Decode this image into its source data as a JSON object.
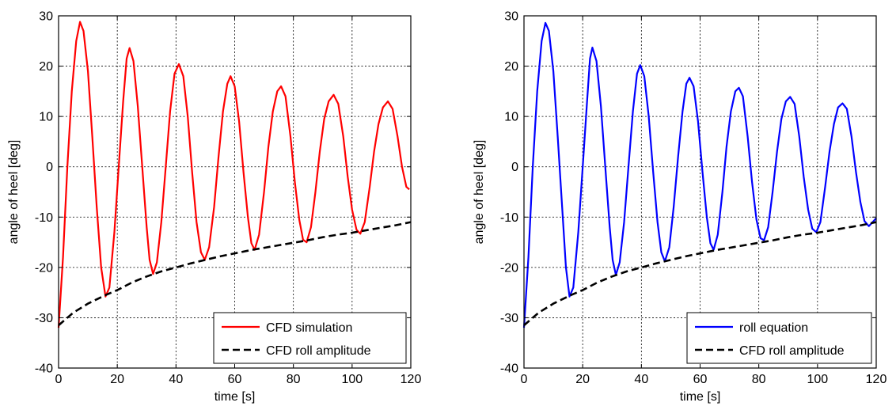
{
  "chart_data": [
    {
      "type": "line",
      "xlabel": "time [s]",
      "ylabel": "angle of heel [deg]",
      "xlim": [
        0,
        120
      ],
      "ylim": [
        -40,
        30
      ],
      "xticks": [
        0,
        20,
        40,
        60,
        80,
        100,
        120
      ],
      "yticks": [
        -40,
        -30,
        -20,
        -10,
        0,
        10,
        20,
        30
      ],
      "grid": true,
      "legend_position": "bottom-right",
      "series": [
        {
          "name": "CFD simulation",
          "color": "#ff0000",
          "style": "solid",
          "points": [
            [
              0,
              -32
            ],
            [
              1.5,
              -18
            ],
            [
              3,
              0
            ],
            [
              4.5,
              15
            ],
            [
              6,
              25
            ],
            [
              7.3,
              28.8
            ],
            [
              8.5,
              27
            ],
            [
              10,
              19
            ],
            [
              11.5,
              6
            ],
            [
              13,
              -8
            ],
            [
              14.5,
              -20
            ],
            [
              16,
              -25.8
            ],
            [
              17.3,
              -24
            ],
            [
              19,
              -13
            ],
            [
              20.5,
              0
            ],
            [
              22,
              13
            ],
            [
              23.2,
              21.5
            ],
            [
              24.2,
              23.6
            ],
            [
              25.5,
              21
            ],
            [
              27,
              12
            ],
            [
              28.5,
              0
            ],
            [
              30,
              -12
            ],
            [
              31,
              -18.5
            ],
            [
              32.2,
              -21.3
            ],
            [
              33.5,
              -19
            ],
            [
              35,
              -11
            ],
            [
              36.5,
              0
            ],
            [
              38,
              11
            ],
            [
              39.5,
              18.5
            ],
            [
              41,
              20.4
            ],
            [
              42.5,
              18
            ],
            [
              44,
              10
            ],
            [
              45.5,
              -1
            ],
            [
              47,
              -11
            ],
            [
              48.5,
              -17
            ],
            [
              49.8,
              -18.5
            ],
            [
              51.3,
              -16
            ],
            [
              53,
              -8
            ],
            [
              54.5,
              2
            ],
            [
              56,
              11
            ],
            [
              57.5,
              16.5
            ],
            [
              58.6,
              18
            ],
            [
              60,
              16
            ],
            [
              61.5,
              9
            ],
            [
              63,
              -1
            ],
            [
              64.5,
              -10
            ],
            [
              65.7,
              -15.2
            ],
            [
              66.8,
              -16.5
            ],
            [
              68.3,
              -13.5
            ],
            [
              70,
              -5
            ],
            [
              71.5,
              4
            ],
            [
              73,
              11
            ],
            [
              74.5,
              15
            ],
            [
              75.8,
              16
            ],
            [
              77.3,
              14
            ],
            [
              79,
              6
            ],
            [
              80.5,
              -3
            ],
            [
              82,
              -10.5
            ],
            [
              83.3,
              -14.5
            ],
            [
              84.5,
              -15
            ],
            [
              86,
              -12
            ],
            [
              87.5,
              -5
            ],
            [
              89,
              3
            ],
            [
              90.5,
              9.5
            ],
            [
              92,
              13
            ],
            [
              93.7,
              14.3
            ],
            [
              95.3,
              12.5
            ],
            [
              97,
              6
            ],
            [
              98.5,
              -2
            ],
            [
              100,
              -8.5
            ],
            [
              101.5,
              -12.5
            ],
            [
              102.8,
              -13.3
            ],
            [
              104.3,
              -11
            ],
            [
              106,
              -4
            ],
            [
              107.5,
              3
            ],
            [
              109,
              8.5
            ],
            [
              110.5,
              11.8
            ],
            [
              112.2,
              13
            ],
            [
              113.8,
              11.5
            ],
            [
              115.5,
              6
            ],
            [
              117,
              0
            ],
            [
              118.5,
              -4
            ],
            [
              119.5,
              -4.5
            ]
          ]
        },
        {
          "name": "CFD roll amplitude",
          "color": "#000000",
          "style": "dashed",
          "points": [
            [
              0,
              -31.5
            ],
            [
              5,
              -29
            ],
            [
              10,
              -27.2
            ],
            [
              16,
              -25.5
            ],
            [
              20,
              -24.5
            ],
            [
              25,
              -23
            ],
            [
              30,
              -21.8
            ],
            [
              35,
              -20.8
            ],
            [
              40,
              -20
            ],
            [
              45,
              -19.2
            ],
            [
              50,
              -18.5
            ],
            [
              55,
              -17.8
            ],
            [
              60,
              -17.2
            ],
            [
              66,
              -16.5
            ],
            [
              70,
              -16.1
            ],
            [
              75,
              -15.6
            ],
            [
              80,
              -15.1
            ],
            [
              85,
              -14.6
            ],
            [
              90,
              -14
            ],
            [
              95,
              -13.5
            ],
            [
              100,
              -13.1
            ],
            [
              105,
              -12.6
            ],
            [
              110,
              -12.1
            ],
            [
              115,
              -11.6
            ],
            [
              120,
              -11
            ]
          ]
        }
      ]
    },
    {
      "type": "line",
      "xlabel": "time [s]",
      "ylabel": "angle of heel [deg]",
      "xlim": [
        0,
        120
      ],
      "ylim": [
        -40,
        30
      ],
      "xticks": [
        0,
        20,
        40,
        60,
        80,
        100,
        120
      ],
      "yticks": [
        -40,
        -30,
        -20,
        -10,
        0,
        10,
        20,
        30
      ],
      "grid": true,
      "legend_position": "bottom-right",
      "series": [
        {
          "name": "roll equation",
          "color": "#0000ff",
          "style": "solid",
          "points": [
            [
              0,
              -32
            ],
            [
              1.5,
              -18
            ],
            [
              3,
              0
            ],
            [
              4.5,
              15
            ],
            [
              6,
              25
            ],
            [
              7.3,
              28.6
            ],
            [
              8.5,
              27
            ],
            [
              10,
              19
            ],
            [
              11.5,
              6
            ],
            [
              13,
              -8
            ],
            [
              14.3,
              -20
            ],
            [
              15.5,
              -25.8
            ],
            [
              16.8,
              -24
            ],
            [
              18.5,
              -13
            ],
            [
              20,
              0
            ],
            [
              21.5,
              13
            ],
            [
              22.5,
              21.5
            ],
            [
              23.3,
              23.7
            ],
            [
              24.7,
              21
            ],
            [
              26.2,
              12
            ],
            [
              27.7,
              0
            ],
            [
              29.2,
              -12
            ],
            [
              30.2,
              -18.5
            ],
            [
              31.3,
              -21.5
            ],
            [
              32.6,
              -19
            ],
            [
              34.1,
              -11
            ],
            [
              35.6,
              0
            ],
            [
              37.1,
              11
            ],
            [
              38.5,
              18.5
            ],
            [
              39.6,
              20.2
            ],
            [
              41,
              18
            ],
            [
              42.5,
              10
            ],
            [
              44,
              -1
            ],
            [
              45.5,
              -11
            ],
            [
              46.8,
              -17
            ],
            [
              48,
              -18.8
            ],
            [
              49.5,
              -16
            ],
            [
              51,
              -8
            ],
            [
              52.5,
              2
            ],
            [
              54,
              11
            ],
            [
              55.3,
              16.5
            ],
            [
              56.4,
              17.7
            ],
            [
              57.8,
              16
            ],
            [
              59.3,
              9
            ],
            [
              60.8,
              -1
            ],
            [
              62.3,
              -10
            ],
            [
              63.5,
              -15.2
            ],
            [
              64.6,
              -16.5
            ],
            [
              66,
              -13.5
            ],
            [
              67.6,
              -5
            ],
            [
              69,
              4
            ],
            [
              70.5,
              11
            ],
            [
              72,
              15
            ],
            [
              73.2,
              15.7
            ],
            [
              74.6,
              14
            ],
            [
              76.2,
              6
            ],
            [
              77.7,
              -3
            ],
            [
              79.2,
              -10.5
            ],
            [
              80.6,
              -14.2
            ],
            [
              81.8,
              -14.6
            ],
            [
              83.2,
              -12
            ],
            [
              84.7,
              -5
            ],
            [
              86.2,
              3
            ],
            [
              87.7,
              9.5
            ],
            [
              89.2,
              13
            ],
            [
              90.7,
              13.9
            ],
            [
              92.2,
              12.5
            ],
            [
              93.8,
              6
            ],
            [
              95.3,
              -2
            ],
            [
              96.8,
              -8.5
            ],
            [
              98.2,
              -12.3
            ],
            [
              99.6,
              -13
            ],
            [
              101,
              -11
            ],
            [
              102.6,
              -4
            ],
            [
              104.1,
              3
            ],
            [
              105.6,
              8.5
            ],
            [
              107,
              11.8
            ],
            [
              108.5,
              12.6
            ],
            [
              110,
              11.5
            ],
            [
              111.6,
              6
            ],
            [
              113.1,
              -1
            ],
            [
              114.6,
              -7
            ],
            [
              116,
              -10.8
            ],
            [
              117.5,
              -11.8
            ],
            [
              118.8,
              -11
            ],
            [
              120,
              -10.2
            ]
          ]
        },
        {
          "name": "CFD roll amplitude",
          "color": "#000000",
          "style": "dashed",
          "points": [
            [
              0,
              -31.5
            ],
            [
              5,
              -29
            ],
            [
              10,
              -27.2
            ],
            [
              16,
              -25.5
            ],
            [
              20,
              -24.5
            ],
            [
              25,
              -23
            ],
            [
              30,
              -21.8
            ],
            [
              35,
              -20.8
            ],
            [
              40,
              -20
            ],
            [
              45,
              -19.2
            ],
            [
              50,
              -18.5
            ],
            [
              55,
              -17.8
            ],
            [
              60,
              -17.2
            ],
            [
              66,
              -16.5
            ],
            [
              70,
              -16.1
            ],
            [
              75,
              -15.6
            ],
            [
              80,
              -15.1
            ],
            [
              85,
              -14.6
            ],
            [
              90,
              -14
            ],
            [
              95,
              -13.5
            ],
            [
              100,
              -13.1
            ],
            [
              105,
              -12.6
            ],
            [
              110,
              -12.1
            ],
            [
              115,
              -11.6
            ],
            [
              120,
              -11
            ]
          ]
        }
      ]
    }
  ]
}
